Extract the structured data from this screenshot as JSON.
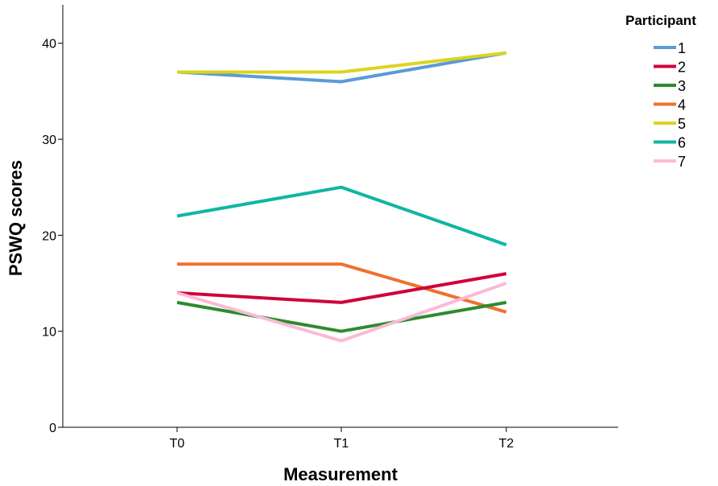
{
  "chart_data": {
    "type": "line",
    "xlabel": "Measurement",
    "ylabel": "PSWQ scores",
    "categories": [
      "T0",
      "T1",
      "T2"
    ],
    "ylim": [
      0,
      44
    ],
    "yticks": [
      0,
      10,
      20,
      30,
      40
    ],
    "grid": false,
    "legend": {
      "title": "Participant",
      "placement": "top-right"
    },
    "series": [
      {
        "name": "1",
        "color": "#5b9bd5",
        "values": [
          37,
          36,
          39
        ]
      },
      {
        "name": "2",
        "color": "#d0003a",
        "values": [
          14,
          13,
          16
        ]
      },
      {
        "name": "3",
        "color": "#2e8b2e",
        "values": [
          13,
          10,
          13
        ]
      },
      {
        "name": "4",
        "color": "#f07030",
        "values": [
          17,
          17,
          12
        ]
      },
      {
        "name": "5",
        "color": "#dcd41e",
        "values": [
          37,
          37,
          39
        ]
      },
      {
        "name": "6",
        "color": "#10b5a5",
        "values": [
          22,
          25,
          19
        ]
      },
      {
        "name": "7",
        "color": "#fbbad6",
        "values": [
          14,
          9,
          15
        ]
      }
    ]
  }
}
